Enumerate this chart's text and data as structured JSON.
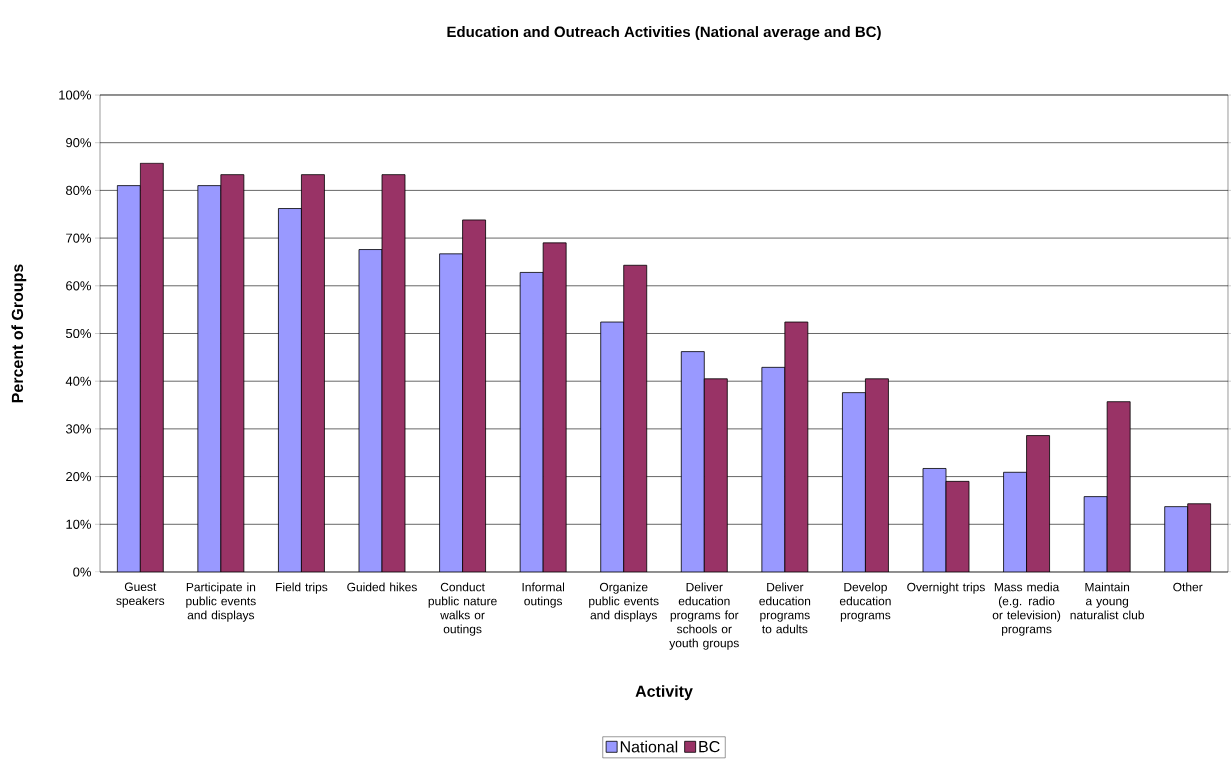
{
  "chart_data": {
    "type": "bar",
    "title": "Education and Outreach Activities (National average and BC)",
    "xlabel": "Activity",
    "ylabel": "Percent of Groups",
    "categories": [
      "Guest speakers",
      "Participate in public events and displays",
      "Field trips",
      "Guided hikes",
      "Conduct public nature walks or outings",
      "Informal outings",
      "Organize public events and displays",
      "Deliver education programs for schools or youth groups",
      "Deliver education programs to adults",
      "Develop education programs",
      "Overnight trips",
      "Mass media (e.g. radio or television) programs",
      "Maintain a young naturalist club",
      "Other"
    ],
    "series": [
      {
        "name": "National",
        "color": "#9999ff",
        "values": [
          81.0,
          81.0,
          76.2,
          67.6,
          66.7,
          62.8,
          52.4,
          46.2,
          42.9,
          37.6,
          21.7,
          20.9,
          15.8,
          13.7
        ]
      },
      {
        "name": "BC",
        "color": "#993366",
        "values": [
          85.7,
          83.3,
          83.3,
          83.3,
          73.8,
          69.0,
          64.3,
          40.5,
          52.4,
          40.5,
          19.0,
          28.6,
          35.7,
          14.3
        ]
      }
    ],
    "ylim": [
      0,
      100
    ],
    "yticks": [
      {
        "value": 0,
        "label": "0%"
      },
      {
        "value": 10,
        "label": "10%"
      },
      {
        "value": 20,
        "label": "20%"
      },
      {
        "value": 30,
        "label": "30%"
      },
      {
        "value": 40,
        "label": "40%"
      },
      {
        "value": 50,
        "label": "50%"
      },
      {
        "value": 60,
        "label": "60%"
      },
      {
        "value": 70,
        "label": "70%"
      },
      {
        "value": 80,
        "label": "80%"
      },
      {
        "value": 90,
        "label": "90%"
      },
      {
        "value": 100,
        "label": "100%"
      }
    ],
    "grid": "y",
    "legend": "bottom"
  }
}
